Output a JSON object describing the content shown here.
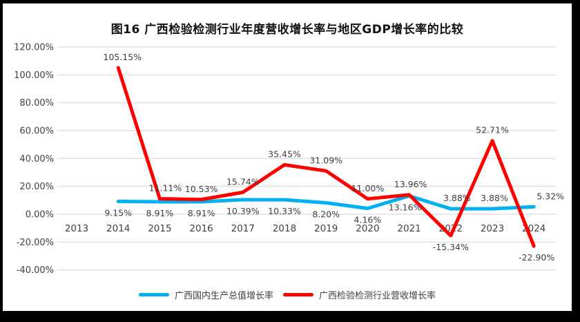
{
  "title": "图16 广西检验检测行业年度营收增长率与地区GDP增长率的比较",
  "chart_data": {
    "type": "line",
    "categories": [
      "2013",
      "2014",
      "2015",
      "2016",
      "2017",
      "2018",
      "2019",
      "2020",
      "2021",
      "2022",
      "2023",
      "2024"
    ],
    "series": [
      {
        "name": "广西国内生产总值增长率",
        "color": "#00B0F0",
        "values": [
          null,
          9.15,
          8.91,
          8.91,
          10.39,
          10.33,
          8.2,
          4.16,
          13.16,
          3.88,
          3.88,
          5.32
        ],
        "labels": [
          null,
          "9.15%",
          "8.91%",
          "8.91%",
          "10.39%",
          "10.33%",
          "8.20%",
          "4.16%",
          "13.16%",
          "3.88%",
          "3.88%",
          "5.32%"
        ],
        "label_side": [
          null,
          "below",
          "below",
          "below",
          "below",
          "below",
          "below",
          "below",
          "below",
          "above",
          "above",
          "above"
        ],
        "label_dx": [
          0,
          0,
          0,
          0,
          0,
          0,
          0,
          0,
          -6,
          9,
          3,
          24
        ]
      },
      {
        "name": "广西检验检测行业营收增长率",
        "color": "#FF0000",
        "values": [
          null,
          105.15,
          11.11,
          10.53,
          15.74,
          35.45,
          31.09,
          11.0,
          13.96,
          -15.34,
          52.71,
          -22.9
        ],
        "labels": [
          null,
          "105.15%",
          "11.11%",
          "10.53%",
          "15.74%",
          "35.45%",
          "31.09%",
          "11.00%",
          "13.96%",
          "-15.34%",
          "52.71%",
          "-22.90%"
        ],
        "label_side": [
          null,
          "above",
          "above",
          "above",
          "above",
          "above",
          "above",
          "above",
          "above",
          "below",
          "above",
          "below"
        ],
        "label_dx": [
          0,
          6,
          8,
          0,
          0,
          0,
          0,
          0,
          2,
          0,
          0,
          4
        ]
      }
    ],
    "ylim": [
      -40,
      120
    ],
    "ytick_step": 20,
    "ytick_labels": [
      "120.00%",
      "100.00%",
      "80.00%",
      "60.00%",
      "40.00%",
      "20.00%",
      "0.00%",
      "-20.00%",
      "-40.00%"
    ],
    "grid": true,
    "legend_position": "bottom",
    "colors": {
      "grid_line": "#D9D9D9",
      "axis_text": "#404040",
      "data_label_text": "#404040",
      "frame": "#000000",
      "background": "#FFFFFF"
    }
  }
}
